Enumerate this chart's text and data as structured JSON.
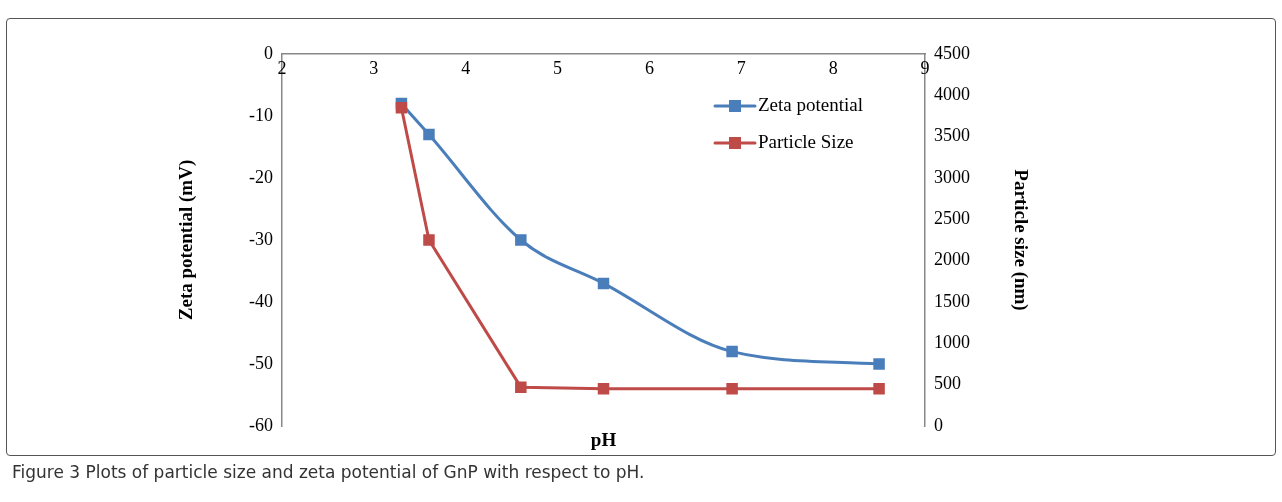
{
  "chart_data": {
    "type": "line",
    "xlabel": "pH",
    "ylabel": "Zeta potential (mV)",
    "y2label": "Particle size (nm)",
    "x": [
      3.3,
      3.6,
      4.6,
      5.5,
      6.9,
      8.5
    ],
    "series": [
      {
        "name": "Zeta potential",
        "color": "#4a7ebb",
        "values": [
          -8,
          -13,
          -30,
          -37,
          -48,
          -50
        ]
      },
      {
        "name": "Particle Size",
        "color": "#be4b48",
        "axis": "y2",
        "values": [
          3850,
          2250,
          470,
          450,
          450,
          450
        ]
      }
    ],
    "xlim": [
      2,
      9
    ],
    "xticks": [
      2,
      3,
      4,
      5,
      6,
      7,
      8,
      9
    ],
    "ylim": [
      -60,
      0
    ],
    "yticks": [
      -60,
      -50,
      -40,
      -30,
      -20,
      -10,
      0
    ],
    "y2lim": [
      0,
      4500
    ],
    "y2ticks": [
      0,
      500,
      1000,
      1500,
      2000,
      2500,
      3000,
      3500,
      4000,
      4500
    ],
    "legend": "top right",
    "marker": "square",
    "grid": false,
    "annotations": [
      "Figure 3 Plots of particle size and zeta potential of GnP with respect to pH."
    ]
  }
}
